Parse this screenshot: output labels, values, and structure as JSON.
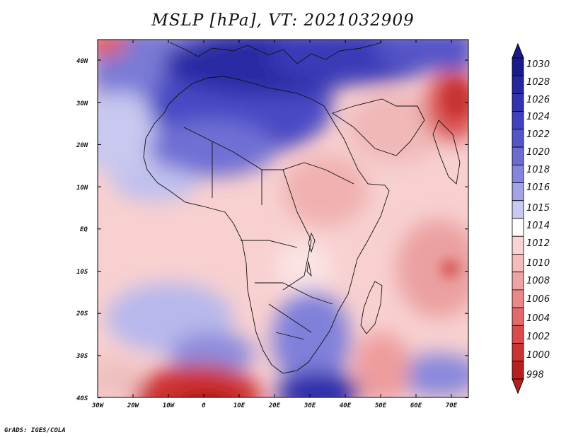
{
  "title": "MSLP [hPa], VT: 2021032909",
  "credit": "GrADS: IGES/COLA",
  "lat_labels": [
    "40N",
    "30N",
    "20N",
    "10N",
    "EQ",
    "10S",
    "20S",
    "30S",
    "40S"
  ],
  "lon_labels": [
    "30W",
    "20W",
    "10W",
    "0",
    "10E",
    "20E",
    "30E",
    "40E",
    "50E",
    "60E",
    "70E"
  ],
  "colorbar": {
    "levels": [
      "1030",
      "1028",
      "1026",
      "1024",
      "1022",
      "1020",
      "1018",
      "1016",
      "1015",
      "1014",
      "1012",
      "1010",
      "1008",
      "1006",
      "1004",
      "1002",
      "1000",
      "998"
    ],
    "colors": [
      "#1a1a8c",
      "#26269e",
      "#3333b0",
      "#4040c0",
      "#5555c8",
      "#6b6bd2",
      "#8585dc",
      "#a3a3e6",
      "#c8c8f0",
      "#ffffff",
      "#f8d4d4",
      "#f4bcbc",
      "#eea4a4",
      "#e88888",
      "#e06a6a",
      "#d84c4c",
      "#cc3333",
      "#b82020"
    ]
  },
  "chart_data": {
    "type": "heatmap",
    "title": "MSLP [hPa], VT: 2021032909",
    "variable": "Mean sea level pressure",
    "units": "hPa",
    "valid_time": "2021032909",
    "lon_range": [
      -30,
      75
    ],
    "lat_range": [
      -40,
      45
    ],
    "value_range": [
      998,
      1030
    ],
    "features": [
      {
        "region": "Mediterranean / North Africa",
        "value": 1026
      },
      {
        "region": "Sahara",
        "value": 1022
      },
      {
        "region": "Equatorial Africa",
        "value": 1012
      },
      {
        "region": "Arabian Sea / Indian Ocean",
        "value": 1010
      },
      {
        "region": "Northwest India",
        "value": 1004
      },
      {
        "region": "Southern Africa",
        "value": 1020
      },
      {
        "region": "South Atlantic 40S",
        "value": 1002
      },
      {
        "region": "Southern Indian Ocean 40S 30E",
        "value": 1026
      }
    ]
  }
}
